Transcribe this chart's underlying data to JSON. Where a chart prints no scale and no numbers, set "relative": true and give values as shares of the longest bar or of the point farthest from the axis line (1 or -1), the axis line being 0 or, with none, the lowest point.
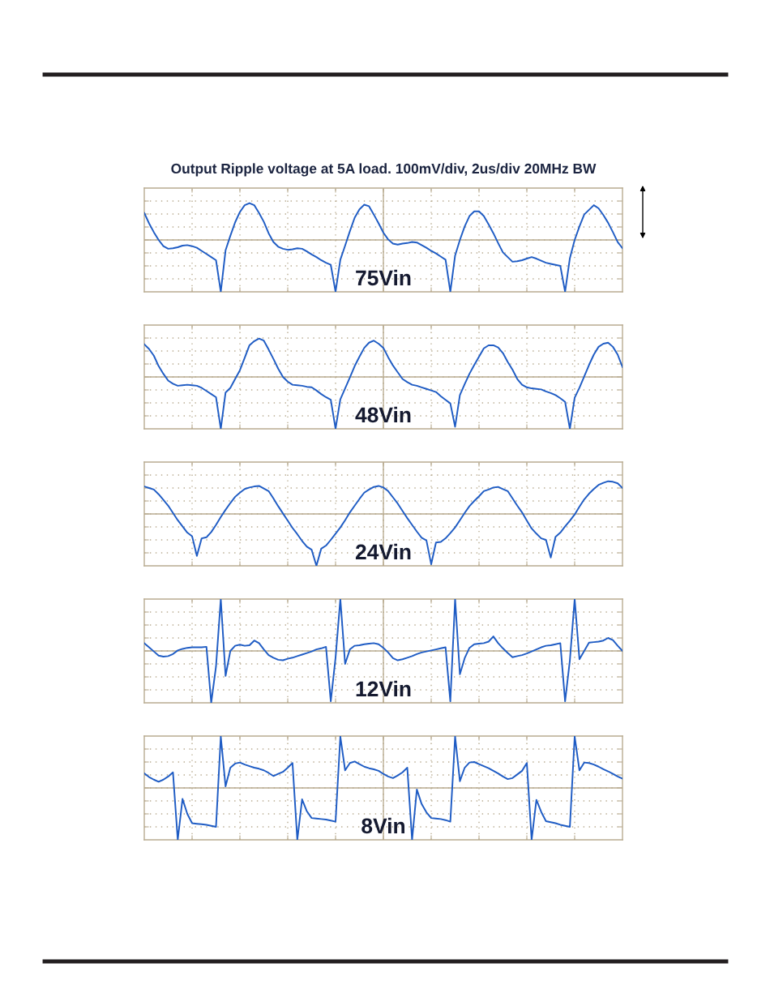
{
  "chart_data": [
    {
      "type": "line",
      "title": "Output Ripple voltage at 5A load. 100mV/div, 2us/div 20MHz BW",
      "relative": true,
      "grid": true,
      "line_style": "solid",
      "categories": [
        null,
        null,
        null,
        null,
        null,
        null,
        null,
        null,
        null,
        null,
        null,
        null,
        null,
        null,
        null,
        null,
        null,
        null,
        null,
        null,
        null,
        null,
        null,
        null,
        null,
        null,
        null,
        null,
        null,
        null,
        null,
        null,
        null,
        null,
        null,
        null,
        null,
        null,
        null,
        null,
        null,
        null,
        null,
        null,
        null,
        null,
        null,
        null,
        null,
        null,
        null,
        null,
        null,
        null,
        null,
        null,
        null,
        null,
        null,
        null,
        null,
        null,
        null,
        null,
        null,
        null,
        null,
        null,
        null,
        null,
        null,
        null,
        null,
        null,
        null,
        null,
        null,
        null,
        null,
        null,
        null,
        null,
        null,
        null,
        null,
        null,
        null,
        null,
        null,
        null,
        null,
        null,
        null,
        null,
        null,
        null,
        null,
        null,
        null,
        null,
        null
      ],
      "series": [
        {
          "name": "75Vin",
          "color": "#1f5cc4",
          "values": [
            0.52,
            0.32,
            0.15,
            0.0,
            -0.12,
            -0.17,
            -0.16,
            -0.14,
            -0.11,
            -0.1,
            -0.12,
            -0.15,
            -0.21,
            -0.27,
            -0.33,
            -0.39,
            -1.0,
            -0.2,
            0.08,
            0.34,
            0.54,
            0.67,
            0.71,
            0.67,
            0.52,
            0.35,
            0.13,
            -0.04,
            -0.13,
            -0.17,
            -0.19,
            -0.18,
            -0.16,
            -0.17,
            -0.22,
            -0.28,
            -0.33,
            -0.39,
            -0.44,
            -0.48,
            -1.0,
            -0.38,
            -0.11,
            0.17,
            0.43,
            0.59,
            0.68,
            0.65,
            0.49,
            0.32,
            0.14,
            0.01,
            -0.07,
            -0.09,
            -0.07,
            -0.06,
            -0.04,
            -0.05,
            -0.1,
            -0.15,
            -0.21,
            -0.26,
            -0.32,
            -0.38,
            -1.0,
            -0.3,
            0.0,
            0.26,
            0.46,
            0.55,
            0.55,
            0.46,
            0.3,
            0.13,
            -0.06,
            -0.24,
            -0.33,
            -0.42,
            -0.41,
            -0.39,
            -0.36,
            -0.33,
            -0.36,
            -0.4,
            -0.44,
            -0.46,
            -0.48,
            -0.5,
            -1.0,
            -0.35,
            0.0,
            0.26,
            0.49,
            0.58,
            0.67,
            0.61,
            0.48,
            0.33,
            0.15,
            -0.04,
            -0.16
          ]
        }
      ]
    },
    {
      "type": "line",
      "relative": true,
      "grid": true,
      "line_style": "solid",
      "categories": [
        null,
        null,
        null,
        null,
        null,
        null,
        null,
        null,
        null,
        null,
        null,
        null,
        null,
        null,
        null,
        null,
        null,
        null,
        null,
        null,
        null,
        null,
        null,
        null,
        null,
        null,
        null,
        null,
        null,
        null,
        null,
        null,
        null,
        null,
        null,
        null,
        null,
        null,
        null,
        null,
        null,
        null,
        null,
        null,
        null,
        null,
        null,
        null,
        null,
        null,
        null,
        null,
        null,
        null,
        null,
        null,
        null,
        null,
        null,
        null,
        null,
        null,
        null,
        null,
        null,
        null,
        null,
        null,
        null,
        null,
        null,
        null,
        null,
        null,
        null,
        null,
        null,
        null,
        null,
        null,
        null,
        null,
        null,
        null,
        null,
        null,
        null,
        null,
        null,
        null,
        null,
        null,
        null,
        null,
        null,
        null,
        null,
        null,
        null,
        null,
        null
      ],
      "series": [
        {
          "name": "48Vin",
          "color": "#1f5cc4",
          "values": [
            0.63,
            0.54,
            0.41,
            0.21,
            0.06,
            -0.07,
            -0.13,
            -0.17,
            -0.16,
            -0.15,
            -0.16,
            -0.17,
            -0.21,
            -0.27,
            -0.33,
            -0.39,
            -1.0,
            -0.3,
            -0.21,
            -0.04,
            0.13,
            0.37,
            0.61,
            0.69,
            0.74,
            0.7,
            0.53,
            0.35,
            0.16,
            0.0,
            -0.09,
            -0.15,
            -0.16,
            -0.17,
            -0.19,
            -0.2,
            -0.26,
            -0.33,
            -0.39,
            -0.44,
            -1.0,
            -0.43,
            -0.22,
            -0.01,
            0.21,
            0.39,
            0.56,
            0.66,
            0.7,
            0.64,
            0.56,
            0.38,
            0.22,
            0.09,
            -0.04,
            -0.1,
            -0.15,
            -0.17,
            -0.2,
            -0.23,
            -0.26,
            -0.29,
            -0.37,
            -0.44,
            -0.51,
            -0.96,
            -0.35,
            -0.14,
            0.06,
            0.23,
            0.39,
            0.55,
            0.61,
            0.61,
            0.57,
            0.46,
            0.29,
            0.14,
            -0.04,
            -0.15,
            -0.2,
            -0.22,
            -0.23,
            -0.24,
            -0.28,
            -0.31,
            -0.35,
            -0.41,
            -0.48,
            -1.0,
            -0.4,
            -0.21,
            0.01,
            0.23,
            0.43,
            0.58,
            0.64,
            0.66,
            0.58,
            0.43,
            0.19
          ]
        }
      ]
    },
    {
      "type": "line",
      "relative": true,
      "grid": true,
      "line_style": "solid",
      "categories": [
        null,
        null,
        null,
        null,
        null,
        null,
        null,
        null,
        null,
        null,
        null,
        null,
        null,
        null,
        null,
        null,
        null,
        null,
        null,
        null,
        null,
        null,
        null,
        null,
        null,
        null,
        null,
        null,
        null,
        null,
        null,
        null,
        null,
        null,
        null,
        null,
        null,
        null,
        null,
        null,
        null,
        null,
        null,
        null,
        null,
        null,
        null,
        null,
        null,
        null,
        null,
        null,
        null,
        null,
        null,
        null,
        null,
        null,
        null,
        null,
        null,
        null,
        null,
        null,
        null,
        null,
        null,
        null,
        null,
        null,
        null,
        null,
        null,
        null,
        null,
        null,
        null,
        null,
        null,
        null,
        null,
        null,
        null,
        null,
        null,
        null,
        null,
        null,
        null,
        null,
        null,
        null,
        null,
        null,
        null,
        null,
        null,
        null,
        null,
        null,
        null
      ],
      "series": [
        {
          "name": "24Vin",
          "color": "#1f5cc4",
          "values": [
            0.53,
            0.5,
            0.47,
            0.38,
            0.27,
            0.16,
            0.02,
            -0.12,
            -0.24,
            -0.36,
            -0.43,
            -0.81,
            -0.47,
            -0.45,
            -0.35,
            -0.21,
            -0.06,
            0.08,
            0.21,
            0.33,
            0.41,
            0.48,
            0.51,
            0.53,
            0.54,
            0.49,
            0.44,
            0.3,
            0.15,
            0.01,
            -0.13,
            -0.27,
            -0.39,
            -0.52,
            -0.63,
            -0.69,
            -1.0,
            -0.67,
            -0.61,
            -0.5,
            -0.38,
            -0.26,
            -0.12,
            0.03,
            0.16,
            0.29,
            0.41,
            0.47,
            0.52,
            0.54,
            0.51,
            0.44,
            0.32,
            0.2,
            0.06,
            -0.08,
            -0.21,
            -0.34,
            -0.46,
            -0.51,
            -0.97,
            -0.55,
            -0.54,
            -0.47,
            -0.37,
            -0.26,
            -0.12,
            0.02,
            0.15,
            0.25,
            0.34,
            0.44,
            0.47,
            0.51,
            0.52,
            0.48,
            0.44,
            0.3,
            0.16,
            0.03,
            -0.13,
            -0.28,
            -0.38,
            -0.47,
            -0.5,
            -0.84,
            -0.44,
            -0.36,
            -0.24,
            -0.13,
            -0.01,
            0.14,
            0.28,
            0.39,
            0.48,
            0.56,
            0.6,
            0.63,
            0.62,
            0.59,
            0.5
          ]
        }
      ]
    },
    {
      "type": "line",
      "relative": true,
      "grid": true,
      "line_style": "solid",
      "categories": [
        null,
        null,
        null,
        null,
        null,
        null,
        null,
        null,
        null,
        null,
        null,
        null,
        null,
        null,
        null,
        null,
        null,
        null,
        null,
        null,
        null,
        null,
        null,
        null,
        null,
        null,
        null,
        null,
        null,
        null,
        null,
        null,
        null,
        null,
        null,
        null,
        null,
        null,
        null,
        null,
        null,
        null,
        null,
        null,
        null,
        null,
        null,
        null,
        null,
        null,
        null,
        null,
        null,
        null,
        null,
        null,
        null,
        null,
        null,
        null,
        null,
        null,
        null,
        null,
        null,
        null,
        null,
        null,
        null,
        null,
        null,
        null,
        null,
        null,
        null,
        null,
        null,
        null,
        null,
        null,
        null,
        null,
        null,
        null,
        null,
        null,
        null,
        null,
        null,
        null,
        null,
        null,
        null,
        null,
        null,
        null,
        null,
        null,
        null,
        null,
        null
      ],
      "series": [
        {
          "name": "12Vin",
          "color": "#1f5cc4",
          "values": [
            0.15,
            0.07,
            -0.01,
            -0.09,
            -0.11,
            -0.1,
            -0.06,
            0.01,
            0.04,
            0.06,
            0.07,
            0.07,
            0.07,
            0.08,
            -1.0,
            -0.3,
            1.0,
            -0.48,
            0.0,
            0.1,
            0.12,
            0.1,
            0.11,
            0.2,
            0.15,
            0.03,
            -0.08,
            -0.13,
            -0.17,
            -0.18,
            -0.15,
            -0.13,
            -0.1,
            -0.07,
            -0.04,
            -0.01,
            0.03,
            0.05,
            0.08,
            -0.97,
            -0.13,
            1.0,
            -0.25,
            0.03,
            0.1,
            0.11,
            0.13,
            0.14,
            0.15,
            0.13,
            0.06,
            -0.03,
            -0.14,
            -0.18,
            -0.16,
            -0.13,
            -0.1,
            -0.06,
            -0.03,
            -0.01,
            0.01,
            0.03,
            0.05,
            0.07,
            -0.97,
            1.0,
            -0.45,
            -0.14,
            0.06,
            0.13,
            0.14,
            0.15,
            0.18,
            0.28,
            0.15,
            0.05,
            -0.04,
            -0.12,
            -0.1,
            -0.08,
            -0.05,
            -0.01,
            0.03,
            0.07,
            0.1,
            0.11,
            0.13,
            0.15,
            -0.97,
            -0.18,
            1.0,
            -0.16,
            0.0,
            0.16,
            0.17,
            0.18,
            0.2,
            0.25,
            0.21,
            0.1,
            0.0
          ]
        }
      ]
    },
    {
      "type": "line",
      "relative": true,
      "grid": true,
      "line_style": "solid",
      "categories": [
        null,
        null,
        null,
        null,
        null,
        null,
        null,
        null,
        null,
        null,
        null,
        null,
        null,
        null,
        null,
        null,
        null,
        null,
        null,
        null,
        null,
        null,
        null,
        null,
        null,
        null,
        null,
        null,
        null,
        null,
        null,
        null,
        null,
        null,
        null,
        null,
        null,
        null,
        null,
        null,
        null,
        null,
        null,
        null,
        null,
        null,
        null,
        null,
        null,
        null,
        null,
        null,
        null,
        null,
        null,
        null,
        null,
        null,
        null,
        null,
        null,
        null,
        null,
        null,
        null,
        null,
        null,
        null,
        null,
        null,
        null,
        null,
        null,
        null,
        null,
        null,
        null,
        null,
        null,
        null,
        null,
        null,
        null,
        null,
        null,
        null,
        null,
        null,
        null,
        null,
        null,
        null,
        null,
        null,
        null,
        null,
        null,
        null,
        null,
        null,
        null
      ],
      "series": [
        {
          "name": "8Vin",
          "color": "#1f5cc4",
          "values": [
            0.28,
            0.21,
            0.16,
            0.12,
            0.16,
            0.22,
            0.3,
            -1.0,
            -0.21,
            -0.5,
            -0.68,
            -0.69,
            -0.7,
            -0.71,
            -0.73,
            -0.75,
            0.99,
            0.03,
            0.39,
            0.47,
            0.49,
            0.45,
            0.42,
            0.39,
            0.37,
            0.34,
            0.29,
            0.23,
            0.27,
            0.31,
            0.39,
            0.48,
            -1.0,
            -0.22,
            -0.45,
            -0.58,
            -0.59,
            -0.6,
            -0.61,
            -0.63,
            -0.65,
            0.99,
            0.34,
            0.48,
            0.51,
            0.46,
            0.41,
            0.38,
            0.36,
            0.33,
            0.27,
            0.22,
            0.19,
            0.24,
            0.3,
            0.39,
            -1.0,
            -0.03,
            -0.31,
            -0.47,
            -0.58,
            -0.59,
            -0.6,
            -0.62,
            -0.65,
            0.99,
            0.13,
            0.39,
            0.49,
            0.5,
            0.46,
            0.42,
            0.38,
            0.33,
            0.28,
            0.22,
            0.17,
            0.19,
            0.26,
            0.33,
            0.48,
            -1.0,
            -0.23,
            -0.46,
            -0.64,
            -0.66,
            -0.68,
            -0.71,
            -0.73,
            -0.75,
            0.99,
            0.34,
            0.49,
            0.48,
            0.45,
            0.41,
            0.36,
            0.32,
            0.27,
            0.22,
            0.18
          ]
        }
      ]
    }
  ]
}
